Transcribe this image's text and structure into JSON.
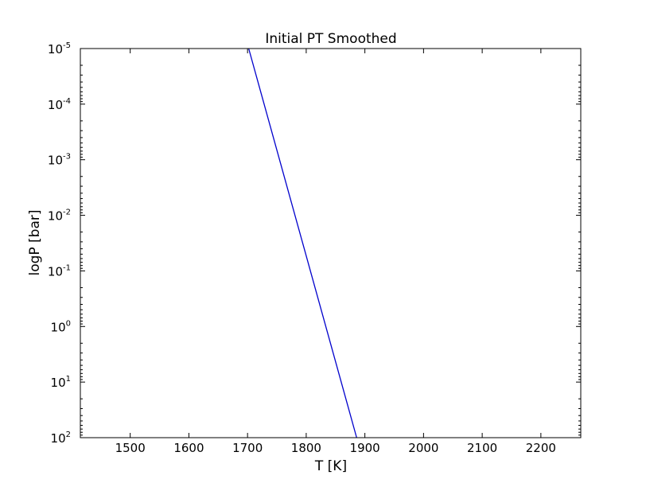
{
  "chart_data": {
    "type": "line",
    "title": "Initial PT Smoothed",
    "xlabel": "T [K]",
    "ylabel": "logP [bar]",
    "xlim": [
      1415,
      2268
    ],
    "ylim": [
      100,
      1e-05
    ],
    "y_scale": "log",
    "y_inverted": true,
    "grid": false,
    "x_ticks": [
      {
        "value": 1500,
        "label": "1500"
      },
      {
        "value": 1600,
        "label": "1600"
      },
      {
        "value": 1700,
        "label": "1700"
      },
      {
        "value": 1800,
        "label": "1800"
      },
      {
        "value": 1900,
        "label": "1900"
      },
      {
        "value": 2000,
        "label": "2000"
      },
      {
        "value": 2100,
        "label": "2100"
      },
      {
        "value": 2200,
        "label": "2200"
      }
    ],
    "y_ticks": [
      {
        "value": 1e-05,
        "base": "10",
        "exp": "-5"
      },
      {
        "value": 0.0001,
        "base": "10",
        "exp": "-4"
      },
      {
        "value": 0.001,
        "base": "10",
        "exp": "-3"
      },
      {
        "value": 0.01,
        "base": "10",
        "exp": "-2"
      },
      {
        "value": 0.1,
        "base": "10",
        "exp": "-1"
      },
      {
        "value": 1,
        "base": "10",
        "exp": "0"
      },
      {
        "value": 10,
        "base": "10",
        "exp": "1"
      },
      {
        "value": 100,
        "base": "10",
        "exp": "2"
      }
    ],
    "series": [
      {
        "color": "#0000cc",
        "points": [
          {
            "x": 1702,
            "y": 1e-05
          },
          {
            "x": 1886,
            "y": 100
          }
        ]
      }
    ]
  }
}
